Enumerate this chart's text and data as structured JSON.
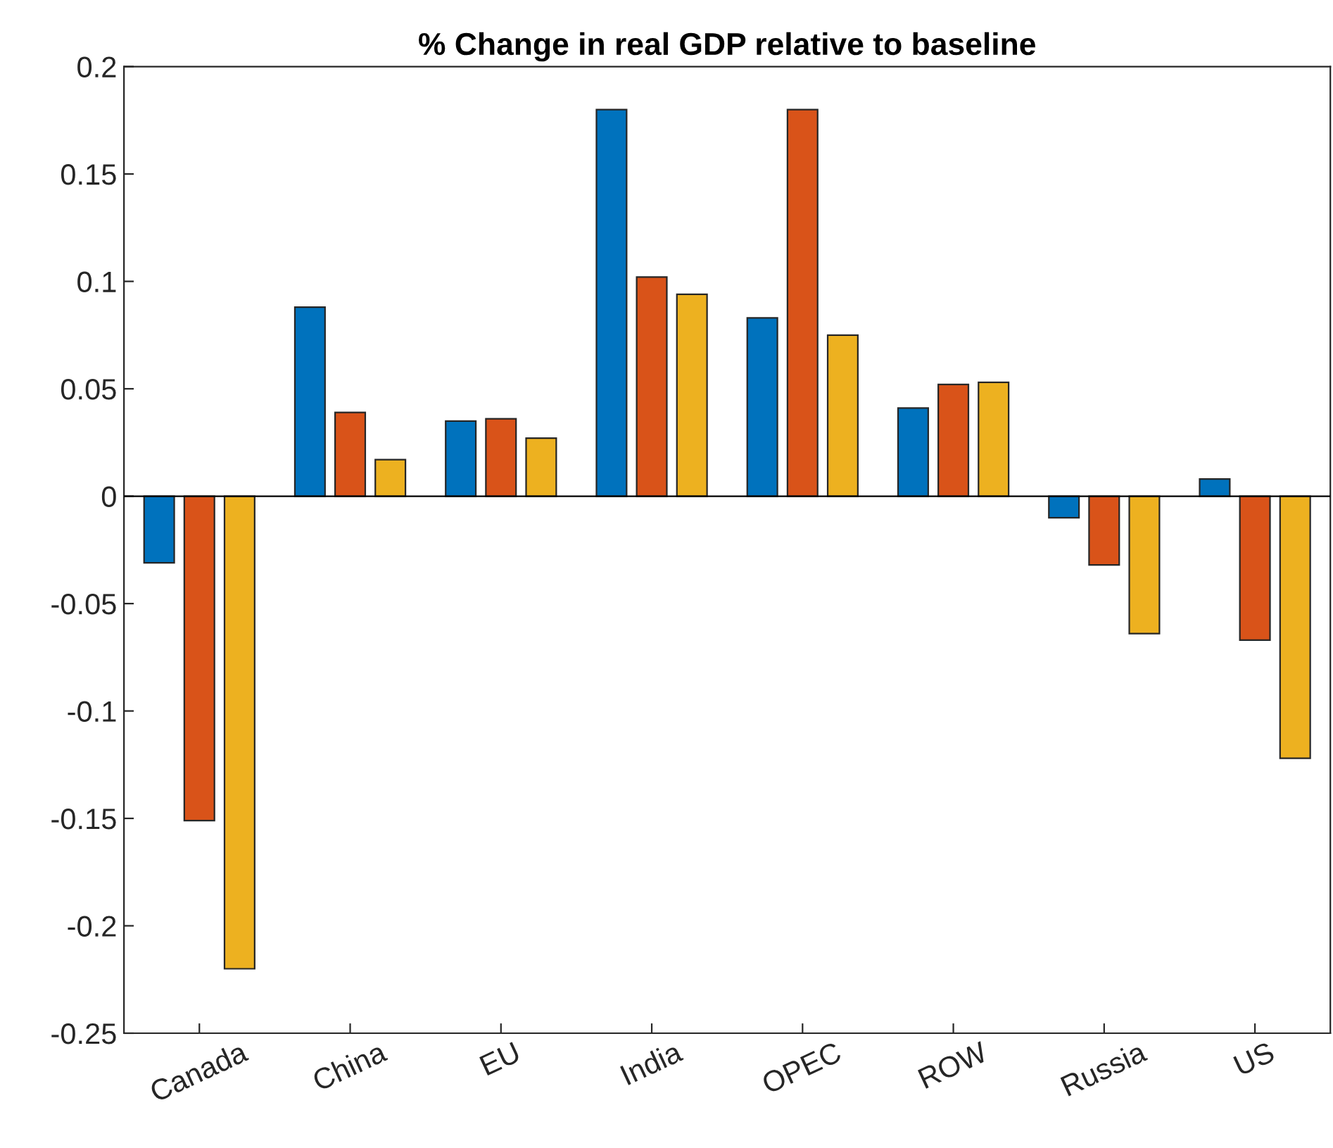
{
  "chart_data": {
    "type": "bar",
    "title": "% Change in real GDP relative to baseline",
    "categories": [
      "Canada",
      "China",
      "EU",
      "India",
      "OPEC",
      "ROW",
      "Russia",
      "US"
    ],
    "series": [
      {
        "color": "#0072bd",
        "values": [
          -0.031,
          0.088,
          0.035,
          0.18,
          0.083,
          0.041,
          -0.01,
          0.008
        ]
      },
      {
        "color": "#d95319",
        "values": [
          -0.151,
          0.039,
          0.036,
          0.102,
          0.18,
          0.052,
          -0.032,
          -0.067
        ]
      },
      {
        "color": "#edb120",
        "values": [
          -0.22,
          0.017,
          0.027,
          0.094,
          0.075,
          0.053,
          -0.064,
          -0.122
        ]
      }
    ],
    "ylim": [
      -0.25,
      0.2
    ],
    "yticks": [
      -0.25,
      -0.2,
      -0.15,
      -0.1,
      -0.05,
      0,
      0.05,
      0.1,
      0.15,
      0.2
    ],
    "ref_lines": [
      {
        "axis": "y",
        "value": 0,
        "color": "#000000"
      }
    ],
    "grid": false
  }
}
